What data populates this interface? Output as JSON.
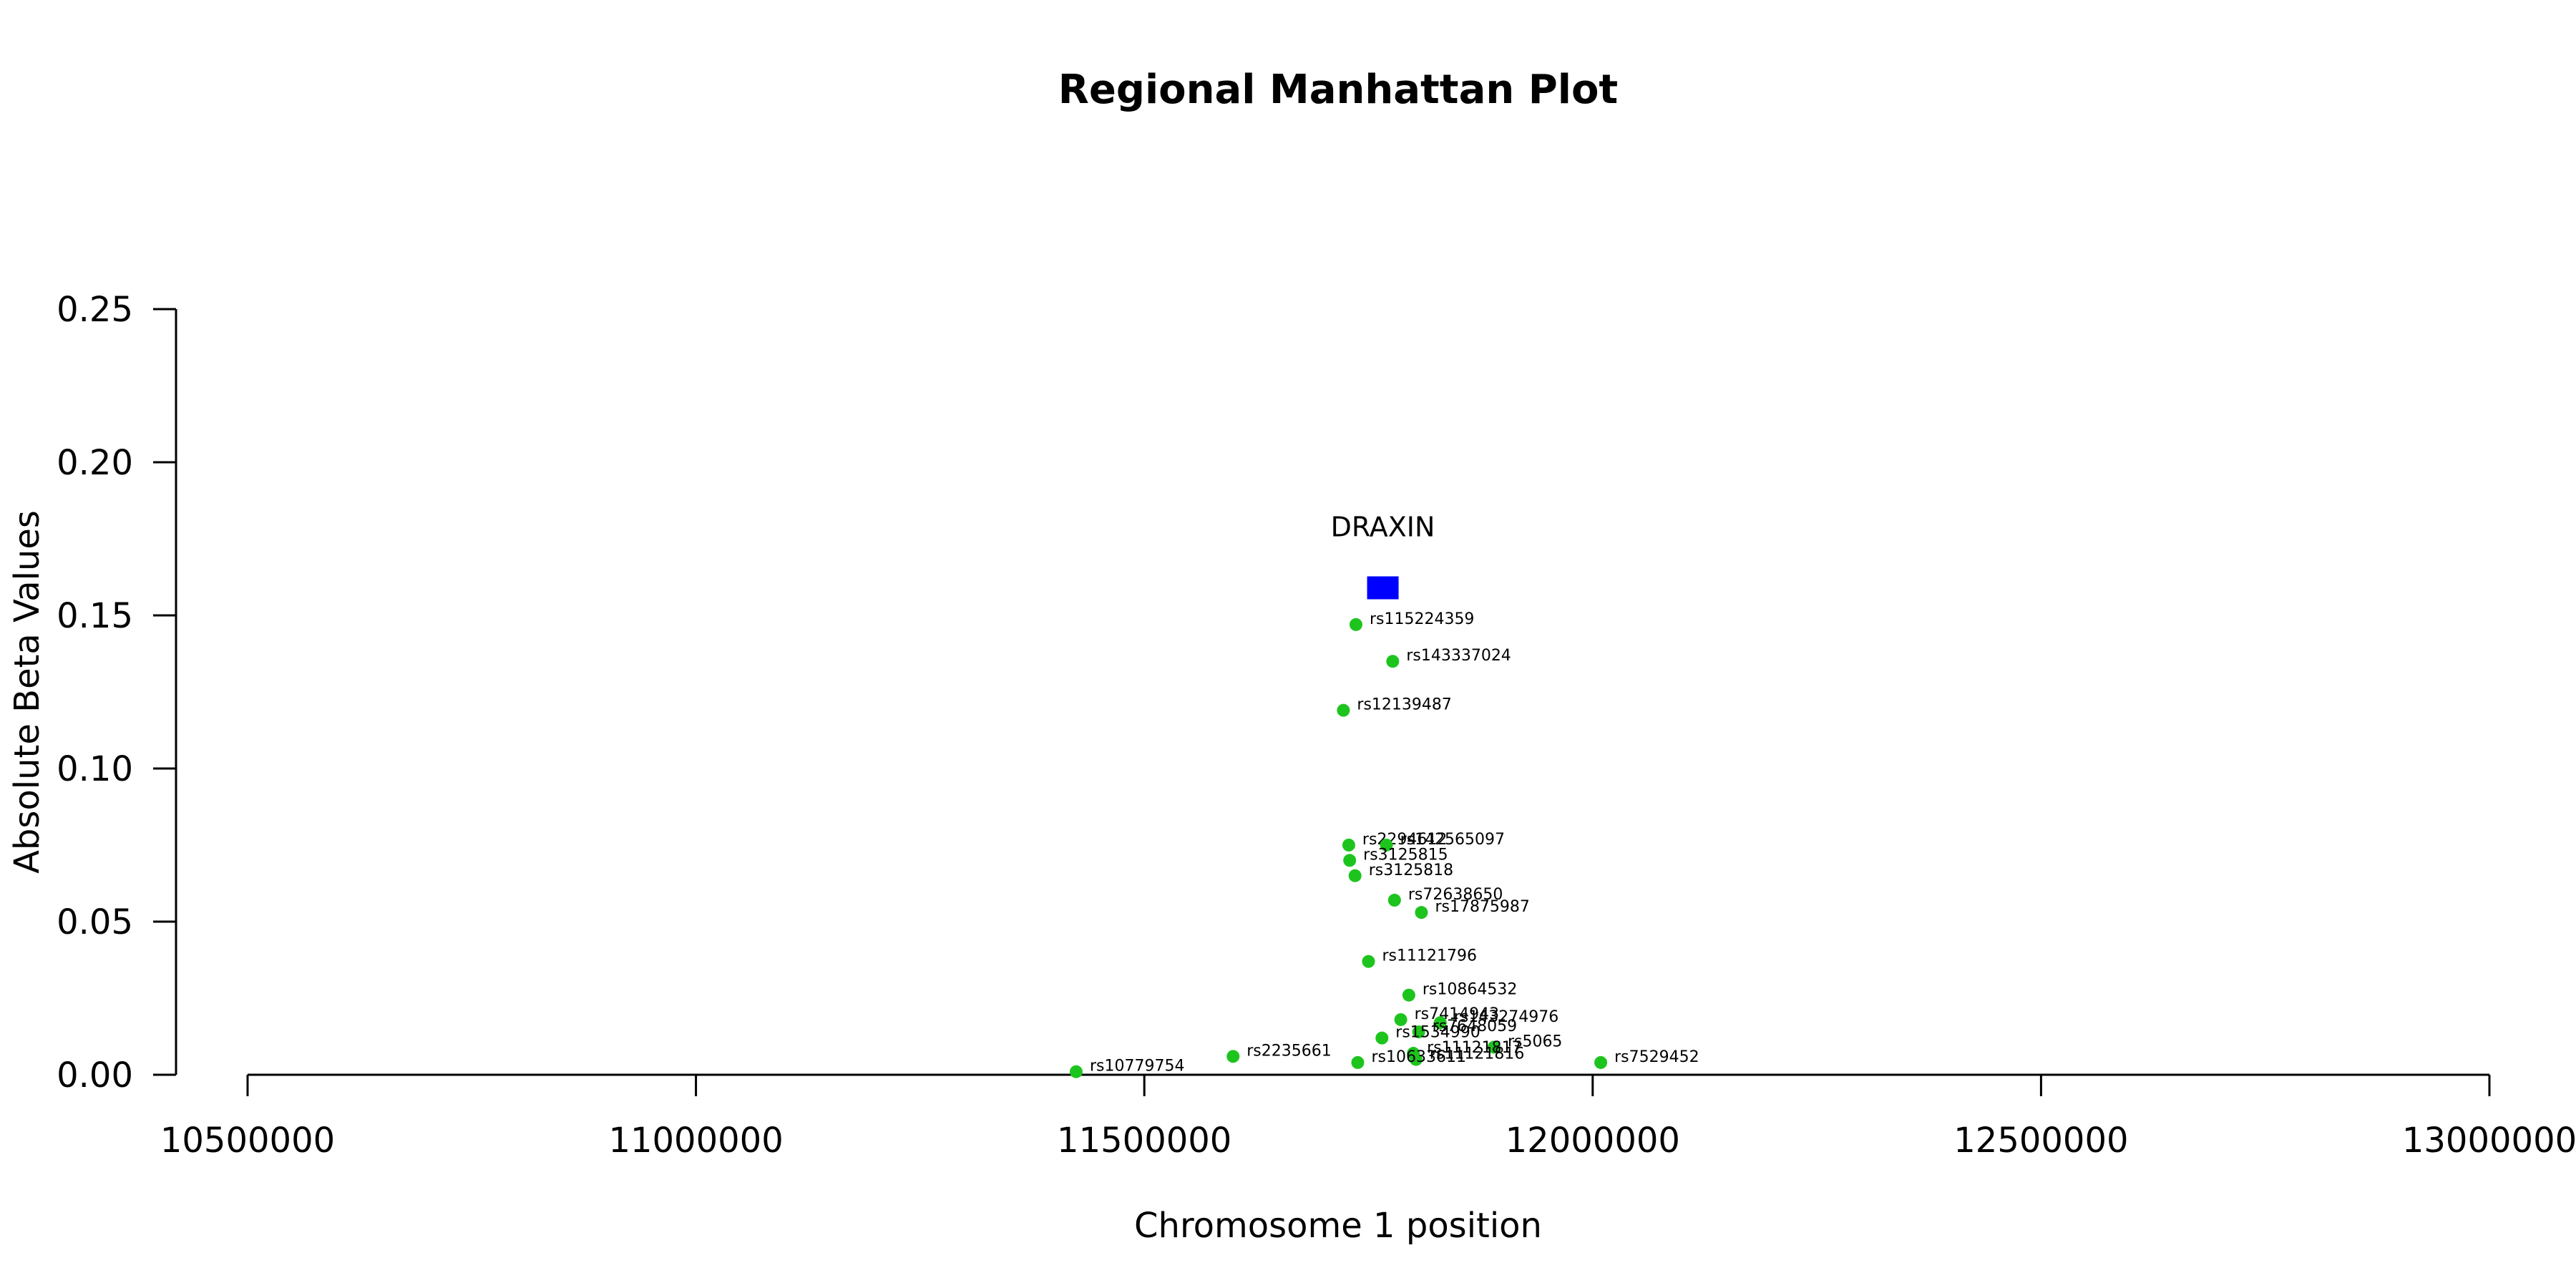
{
  "chart_data": {
    "type": "scatter",
    "title": "Regional Manhattan Plot",
    "xlabel": "Chromosome 1 position",
    "ylabel": "Absolute Beta Values",
    "xlim": [
      10500000,
      13000000
    ],
    "ylim": [
      0,
      0.25
    ],
    "x_ticks": [
      10500000,
      11000000,
      11500000,
      12000000,
      12500000,
      13000000
    ],
    "x_tick_labels": [
      "10500000",
      "11000000",
      "11500000",
      "12000000",
      "12500000",
      "13000000"
    ],
    "y_ticks": [
      0,
      0.05,
      0.1,
      0.15,
      0.2,
      0.25
    ],
    "y_tick_labels": [
      "0.00",
      "0.05",
      "0.10",
      "0.15",
      "0.20",
      "0.25"
    ],
    "grid": false,
    "colors": {
      "snp": "#1ec41e",
      "gene": "#0000ff"
    },
    "gene": {
      "name": "DRAXIN",
      "x": 11766000,
      "y": 0.159
    },
    "series": [
      {
        "points": [
          {
            "label": "rs115224359",
            "x": 11736000,
            "y": 0.147
          },
          {
            "label": "rs143337024",
            "x": 11777000,
            "y": 0.135
          },
          {
            "label": "rs12139487",
            "x": 11722000,
            "y": 0.119
          },
          {
            "label": "rs2294612",
            "x": 11728000,
            "y": 0.075
          },
          {
            "label": "rs142565097",
            "x": 11770000,
            "y": 0.075
          },
          {
            "label": "rs3125815",
            "x": 11729000,
            "y": 0.07
          },
          {
            "label": "rs3125818",
            "x": 11735000,
            "y": 0.065
          },
          {
            "label": "rs72638650",
            "x": 11779000,
            "y": 0.057
          },
          {
            "label": "rs17875987",
            "x": 11809000,
            "y": 0.053
          },
          {
            "label": "rs11121796",
            "x": 11750000,
            "y": 0.037
          },
          {
            "label": "rs10864532",
            "x": 11795000,
            "y": 0.026
          },
          {
            "label": "rs7414943",
            "x": 11786000,
            "y": 0.018
          },
          {
            "label": "rs143274976",
            "x": 11830000,
            "y": 0.017
          },
          {
            "label": "rs7648059",
            "x": 11806000,
            "y": 0.014
          },
          {
            "label": "rs1534990",
            "x": 11765000,
            "y": 0.012
          },
          {
            "label": "rs5065",
            "x": 11890000,
            "y": 0.009
          },
          {
            "label": "rs11121817",
            "x": 11800000,
            "y": 0.007
          },
          {
            "label": "rs11121816",
            "x": 11803000,
            "y": 0.005
          },
          {
            "label": "rs10633611",
            "x": 11738000,
            "y": 0.004
          },
          {
            "label": "rs2235661",
            "x": 11599000,
            "y": 0.006
          },
          {
            "label": "rs7529452",
            "x": 12009000,
            "y": 0.004
          },
          {
            "label": "rs10779754",
            "x": 11424000,
            "y": 0.001
          }
        ]
      }
    ]
  }
}
